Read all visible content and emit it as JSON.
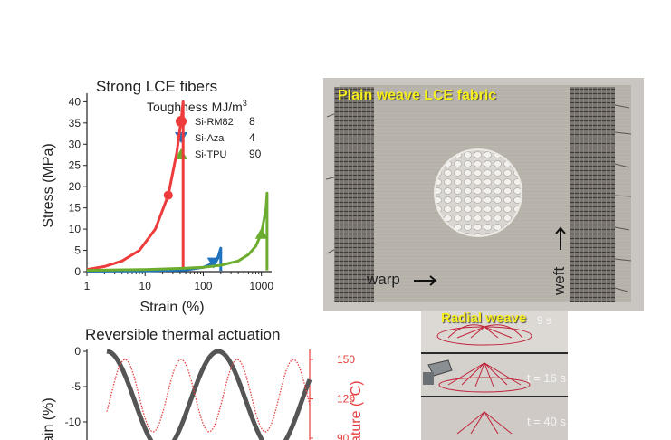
{
  "figure": {
    "panel_a": {
      "title": "Strong LCE fibers",
      "legend_title": "Toughness MJ/m",
      "legend_title_sup": "3"
    },
    "panel_b": {
      "label": "Plain weave LCE fabric",
      "warp": "warp",
      "weft": "weft"
    },
    "panel_c": {
      "title": "Reversible thermal actuation",
      "ylabel_left": "ain (%)",
      "ylabel_right": "ature (°C)"
    },
    "panel_d": {
      "label": "Radial weave",
      "times": [
        "9 s",
        "t = 16 s",
        "t = 40 s"
      ]
    }
  },
  "chart_data": [
    {
      "type": "line",
      "title": "Strong LCE fibers",
      "xlabel": "Strain (%)",
      "ylabel": "Stress (MPa)",
      "xscale": "log",
      "xlim": [
        1,
        1500
      ],
      "ylim": [
        0,
        42
      ],
      "x_ticks": [
        1,
        10,
        100,
        1000
      ],
      "x_tick_labels": [
        "1",
        "10",
        "100",
        "1000"
      ],
      "y_ticks": [
        0,
        5,
        10,
        15,
        20,
        25,
        30,
        35,
        40
      ],
      "legend_position": "top-right",
      "series": [
        {
          "name": "Si-RM82",
          "toughness": "8",
          "color": "#ee3b3b",
          "marker": "circle",
          "x": [
            1,
            2,
            4,
            8,
            15,
            25,
            35,
            42,
            45,
            45
          ],
          "y": [
            0.5,
            1.2,
            2.5,
            5,
            10,
            18,
            28,
            36,
            40,
            0.3
          ]
        },
        {
          "name": "Si-Aza",
          "toughness": "4",
          "color": "#1f73bf",
          "marker": "triangle-down",
          "x": [
            1,
            10,
            50,
            100,
            150,
            180,
            195,
            200,
            200
          ],
          "y": [
            0.1,
            0.2,
            0.4,
            1,
            2,
            3.5,
            5,
            5.5,
            0.2
          ]
        },
        {
          "name": "Si-TPU",
          "toughness": "90",
          "color": "#6cac2e",
          "marker": "triangle-up",
          "x": [
            1,
            10,
            50,
            100,
            200,
            400,
            600,
            800,
            1000,
            1100,
            1200,
            1250,
            1250
          ],
          "y": [
            0.3,
            0.5,
            0.8,
            1,
            1.5,
            2.5,
            4,
            6,
            9,
            12,
            15,
            18.5,
            0.3
          ]
        }
      ]
    },
    {
      "type": "line",
      "title": "Reversible thermal actuation",
      "ylabel": "ain (%)",
      "ylabel_right": "ature (°C)",
      "y_ticks": [
        0,
        -5,
        -10
      ],
      "y_ticks_right": [
        150,
        120,
        90
      ],
      "series": [
        {
          "name": "",
          "color": "#555555",
          "axis": "left",
          "style": "solid"
        },
        {
          "name": "",
          "color": "#e54040",
          "axis": "right",
          "style": "dotted"
        }
      ]
    }
  ]
}
